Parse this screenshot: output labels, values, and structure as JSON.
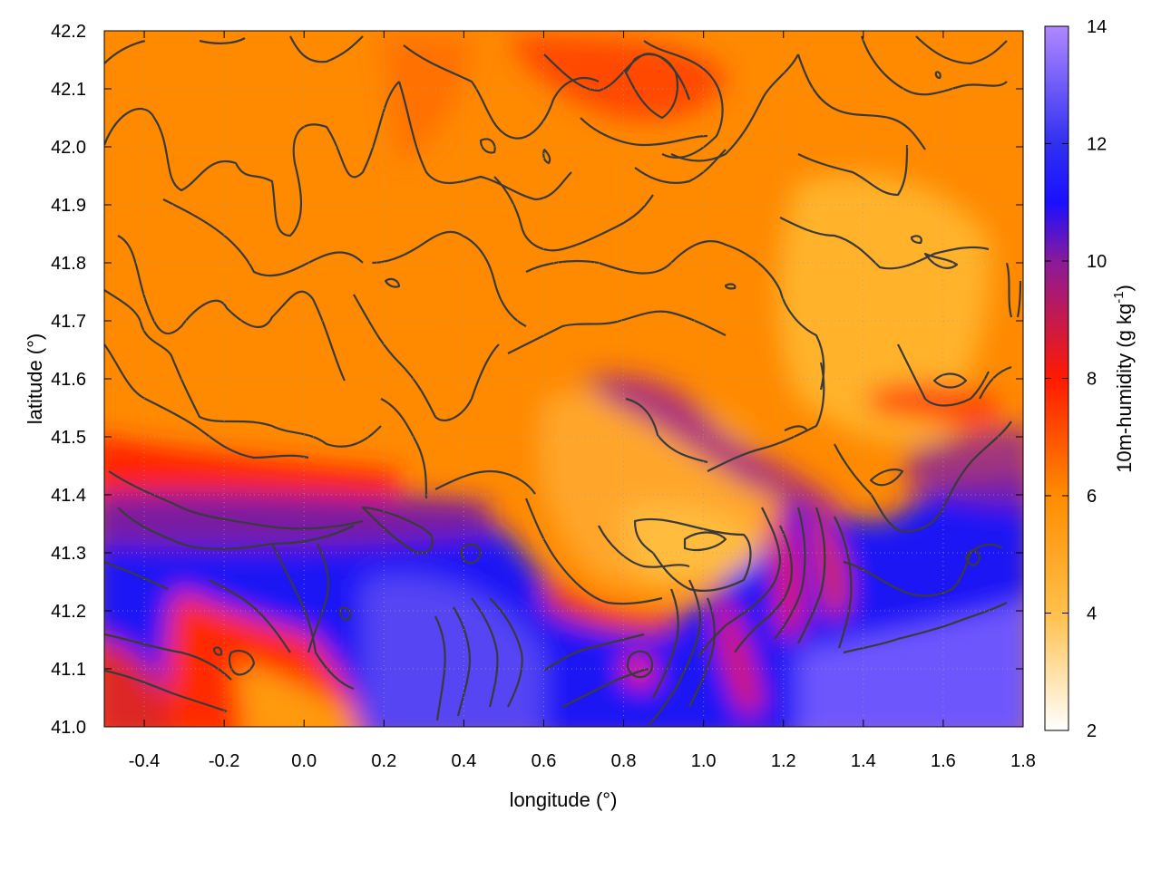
{
  "chart_data": {
    "type": "heatmap",
    "xlabel": "longitude (°)",
    "ylabel": "latitude (°)",
    "xlim": [
      -0.5,
      1.8
    ],
    "ylim": [
      41.0,
      42.2
    ],
    "x_ticks": [
      "-0.4",
      "-0.2",
      "0.0",
      "0.2",
      "0.4",
      "0.6",
      "0.8",
      "1.0",
      "1.2",
      "1.4",
      "1.6",
      "1.8"
    ],
    "y_ticks": [
      "41.0",
      "41.1",
      "41.2",
      "41.3",
      "41.4",
      "41.5",
      "41.6",
      "41.7",
      "41.8",
      "41.9",
      "42.0",
      "42.1",
      "42.2"
    ],
    "grid": true,
    "grid_style": "dotted",
    "colorbar": {
      "label": "10m-humidity (g kg",
      "label_superscript": "-1",
      "label_suffix": ")",
      "range": [
        2,
        14
      ],
      "ticks": [
        "2",
        "4",
        "6",
        "8",
        "10",
        "12",
        "14"
      ],
      "colormap": [
        {
          "value": 2,
          "color": "#ffffff"
        },
        {
          "value": 4,
          "color": "#ffc04a"
        },
        {
          "value": 6,
          "color": "#ff8c00"
        },
        {
          "value": 8,
          "color": "#ff1a00"
        },
        {
          "value": 10,
          "color": "#8a1a9a"
        },
        {
          "value": 11,
          "color": "#1a10ff"
        },
        {
          "value": 12,
          "color": "#3030f0"
        },
        {
          "value": 14,
          "color": "#b088ff"
        }
      ]
    },
    "field_regions": [
      {
        "name": "north-plateau",
        "description_value": 6.2,
        "lon": [
          -0.5,
          1.8
        ],
        "lat": [
          41.55,
          42.2
        ]
      },
      {
        "name": "central-interior",
        "description_value": 5.6,
        "lon": [
          0.3,
          1.3
        ],
        "lat": [
          41.35,
          41.9
        ]
      },
      {
        "name": "dry-core-east",
        "description_value": 4.8,
        "lon": [
          1.3,
          1.7
        ],
        "lat": [
          41.45,
          41.95
        ]
      },
      {
        "name": "dry-core-south",
        "description_value": 4.6,
        "lon": [
          0.7,
          1.1
        ],
        "lat": [
          41.22,
          41.36
        ]
      },
      {
        "name": "coastal-transition",
        "description_value": 8.5,
        "lon": [
          -0.5,
          0.6
        ],
        "lat": [
          41.36,
          41.45
        ]
      },
      {
        "name": "sea-west",
        "description_value": 11.8,
        "lon": [
          -0.5,
          0.6
        ],
        "lat": [
          41.0,
          41.36
        ]
      },
      {
        "name": "sea-east",
        "description_value": 12.2,
        "lon": [
          0.6,
          1.8
        ],
        "lat": [
          41.0,
          41.22
        ]
      },
      {
        "name": "far-east-coast",
        "description_value": 11.0,
        "lon": [
          1.35,
          1.8
        ],
        "lat": [
          41.2,
          41.45
        ]
      },
      {
        "name": "southwest-land",
        "description_value": 7.5,
        "lon": [
          -0.4,
          0.15
        ],
        "lat": [
          41.0,
          41.2
        ]
      }
    ],
    "contour_levels": "terrain elevation (unlabeled)"
  }
}
